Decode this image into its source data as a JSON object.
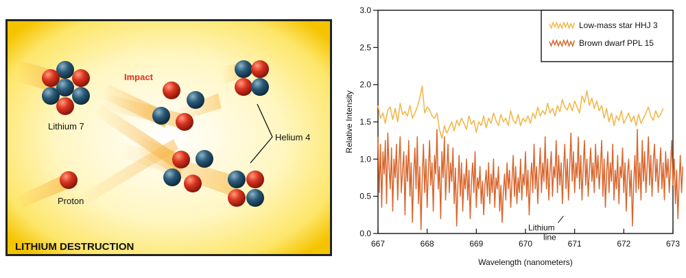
{
  "diagram": {
    "title": "LITHIUM DESTRUCTION",
    "labels": {
      "impact": "Impact",
      "lithium7": "Lithium 7",
      "helium4": "Helium 4",
      "proton": "Proton"
    },
    "colors": {
      "proton": "#d8331f",
      "neutron": "#1f4f6b",
      "impact_text": "#e03020",
      "border": "#222222",
      "glow_center": "#ffffff",
      "glow_edge": "#f5c400"
    }
  },
  "chart_data": {
    "type": "line",
    "xlabel": "Wavelength (nanometers)",
    "ylabel": "Relative Intensity",
    "xlim": [
      667,
      673
    ],
    "ylim": [
      0,
      3
    ],
    "xticks": [
      "667",
      "668",
      "669",
      "670",
      "671",
      "672",
      "673"
    ],
    "yticks": [
      "0.0",
      "0.5",
      "1.0",
      "1.5",
      "2.0",
      "2.5",
      "3.0"
    ],
    "legend_position": "top-right",
    "annotation": {
      "line1": "Lithium",
      "line2": "line",
      "x": 670.8,
      "y": 0.28
    },
    "series": [
      {
        "name": "Low-mass star HHJ 3",
        "color": "#f2b84a",
        "x_start": 667.0,
        "x_step": 0.05,
        "values": [
          1.72,
          1.55,
          1.62,
          1.48,
          1.66,
          1.7,
          1.53,
          1.68,
          1.5,
          1.75,
          1.6,
          1.64,
          1.58,
          1.72,
          1.55,
          1.62,
          1.7,
          1.82,
          1.98,
          1.62,
          1.7,
          1.66,
          1.58,
          1.55,
          1.62,
          1.4,
          1.28,
          1.45,
          1.35,
          1.42,
          1.5,
          1.38,
          1.52,
          1.45,
          1.55,
          1.48,
          1.4,
          1.58,
          1.47,
          1.52,
          1.36,
          1.5,
          1.45,
          1.58,
          1.42,
          1.55,
          1.48,
          1.62,
          1.52,
          1.45,
          1.6,
          1.5,
          1.55,
          1.45,
          1.65,
          1.52,
          1.48,
          1.6,
          1.45,
          1.55,
          1.5,
          1.58,
          1.48,
          1.62,
          1.55,
          1.7,
          1.58,
          1.65,
          1.6,
          1.75,
          1.62,
          1.68,
          1.58,
          1.72,
          1.64,
          1.8,
          1.7,
          1.66,
          1.75,
          1.65,
          1.78,
          1.7,
          1.62,
          1.85,
          1.76,
          1.92,
          1.72,
          1.82,
          1.68,
          1.78,
          1.65,
          1.72,
          1.55,
          1.68,
          1.5,
          1.62,
          1.45,
          1.58,
          1.52,
          1.65,
          1.48,
          1.55,
          1.62,
          1.5,
          1.58,
          1.45,
          1.6,
          1.48,
          1.55,
          1.62,
          1.7,
          1.58,
          1.52,
          1.65,
          1.56,
          1.6,
          1.68
        ]
      },
      {
        "name": "Brown dwarf PPL 15",
        "color": "#d9662c",
        "x_start": 667.0,
        "x_step": 0.025,
        "values": [
          1.3,
          0.55,
          1.2,
          0.35,
          1.1,
          0.8,
          1.25,
          0.4,
          1.35,
          0.9,
          0.6,
          1.15,
          0.3,
          1.0,
          0.75,
          1.2,
          0.45,
          0.95,
          1.3,
          0.55,
          0.85,
          1.1,
          0.25,
          1.05,
          0.7,
          1.25,
          0.5,
          0.95,
          0.15,
          0.8,
          1.15,
          0.6,
          1.3,
          0.4,
          0.9,
          0.05,
          0.75,
          1.2,
          0.55,
          1.0,
          0.35,
          0.85,
          1.25,
          0.65,
          0.95,
          0.3,
          1.05,
          0.8,
          1.4,
          0.6,
          0.9,
          0.2,
          1.1,
          0.75,
          1.3,
          0.45,
          0.85,
          1.2,
          0.55,
          0.95,
          0.7,
          1.15,
          0.4,
          0.88,
          0.1,
          0.65,
          1.05,
          0.5,
          0.95,
          0.3,
          0.8,
          0.6,
          1.0,
          0.45,
          0.85,
          0.2,
          0.7,
          0.95,
          0.55,
          1.1,
          0.35,
          0.75,
          0.6,
          0.9,
          0.4,
          0.7,
          0.25,
          0.65,
          0.85,
          0.5,
          0.95,
          0.4,
          0.8,
          0.55,
          1.0,
          0.35,
          0.75,
          0.6,
          0.9,
          0.3,
          0.65,
          0.15,
          0.55,
          0.8,
          0.45,
          0.95,
          0.6,
          0.85,
          0.35,
          0.7,
          1.05,
          0.5,
          0.9,
          0.4,
          0.75,
          0.55,
          1.0,
          0.45,
          0.8,
          0.65,
          1.1,
          0.5,
          0.85,
          0.25,
          0.7,
          0.95,
          0.55,
          1.2,
          0.6,
          0.9,
          0.4,
          0.8,
          1.15,
          0.55,
          0.95,
          0.7,
          1.3,
          0.6,
          1.0,
          0.45,
          0.85,
          1.1,
          0.5,
          0.9,
          0.75,
          1.25,
          0.55,
          1.05,
          0.65,
          0.95,
          0.4,
          0.85,
          1.2,
          0.6,
          1.0,
          0.45,
          0.9,
          1.35,
          0.7,
          1.1,
          0.55,
          0.95,
          0.75,
          1.3,
          0.6,
          1.05,
          0.45,
          0.9,
          1.25,
          0.65,
          1.0,
          0.5,
          0.85,
          1.15,
          0.7,
          0.95,
          0.55,
          1.2,
          0.75,
          1.05,
          0.6,
          0.9,
          1.25,
          0.5,
          1.0,
          0.35,
          0.8,
          1.1,
          0.55,
          0.95,
          0.7,
          1.2,
          0.45,
          0.85,
          0.6,
          1.05,
          0.4,
          0.9,
          0.75,
          1.15,
          0.55,
          0.95,
          0.3,
          0.8,
          1.0,
          0.5,
          0.85,
          0.1,
          0.65,
          1.05,
          0.55,
          1.4,
          0.6,
          0.95,
          0.45,
          1.25,
          0.7,
          1.1,
          0.55,
          0.9,
          1.3,
          0.65,
          1.05,
          0.5,
          0.95,
          1.2,
          0.7,
          1.0,
          0.55,
          0.85,
          1.15,
          0.6,
          0.95,
          0.45,
          1.1,
          0.75,
          1.0,
          0.55,
          0.9,
          1.25,
          0.65,
          1.0,
          0.4,
          0.85,
          0.2,
          0.7,
          1.05,
          0.55,
          0.9
        ]
      }
    ]
  }
}
